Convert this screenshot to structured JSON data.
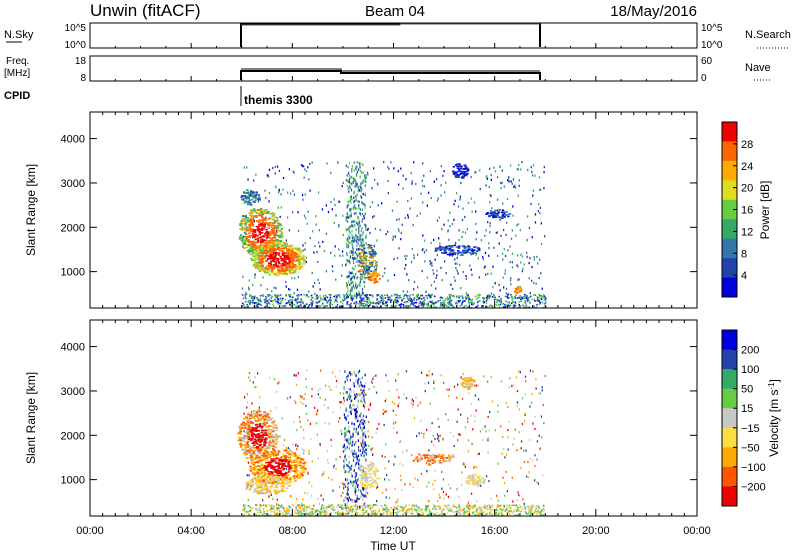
{
  "header": {
    "station": "Unwin (fitACF)",
    "beam": "Beam 04",
    "date": "18/May/2016"
  },
  "strips": {
    "nsky": {
      "label": "N.Sky",
      "ticks": [
        "10^5",
        "10^0"
      ],
      "right_ticks": [
        "10^5",
        "10^0"
      ],
      "right_label": "N.Search"
    },
    "freq": {
      "label_line1": "Freq.",
      "label_line2": "[MHz]",
      "ticks": [
        "18",
        "8"
      ],
      "right_ticks": [
        "60",
        "0"
      ],
      "right_label": "Nave"
    },
    "cpid": {
      "label": "CPID",
      "program": "themis 3300"
    }
  },
  "colors": {
    "power_scale": [
      "#0000dd",
      "#2244aa",
      "#3377aa",
      "#33aa66",
      "#66cc44",
      "#dddd22",
      "#ffaa00",
      "#ff6600",
      "#ee0000"
    ],
    "velocity_scale": [
      "#ee0000",
      "#ff5500",
      "#ffaa00",
      "#ffdd44",
      "#c8c8c8",
      "#66cc44",
      "#33aa66",
      "#2244aa",
      "#0000dd"
    ],
    "ground_scatter": "#909090"
  },
  "chart_data": [
    {
      "type": "heatmap",
      "name": "power",
      "xlabel": "",
      "ylabel": "Slant Range [km]",
      "x_range_hours": [
        0,
        24
      ],
      "ylim_km": [
        180,
        4600
      ],
      "yticks": [
        "4000",
        "3000",
        "2000",
        "1000"
      ],
      "ytick_values": [
        4000,
        3000,
        2000,
        1000
      ],
      "colorbar": {
        "label": "Power [dB]",
        "range": [
          0,
          32
        ],
        "ticks": [
          "28",
          "24",
          "20",
          "16",
          "12",
          "8",
          "4"
        ],
        "tick_values": [
          28,
          24,
          20,
          16,
          12,
          8,
          4
        ]
      },
      "observation_window_ut": [
        "06:00",
        "18:00"
      ]
    },
    {
      "type": "heatmap",
      "name": "velocity",
      "xlabel": "Time UT",
      "ylabel": "Slant Range [km]",
      "x_range_hours": [
        0,
        24
      ],
      "xticks": [
        "00:00",
        "04:00",
        "08:00",
        "12:00",
        "16:00",
        "20:00",
        "00:00"
      ],
      "xtick_values": [
        0,
        4,
        8,
        12,
        16,
        20,
        24
      ],
      "ylim_km": [
        180,
        4600
      ],
      "yticks": [
        "4000",
        "3000",
        "2000",
        "1000"
      ],
      "ytick_values": [
        4000,
        3000,
        2000,
        1000
      ],
      "colorbar": {
        "label": "Velocity [m s",
        "label_sup": "-1",
        "label_end": "]",
        "ticks": [
          "200",
          "100",
          "50",
          "15",
          "−15",
          "−50",
          "−100",
          "−200"
        ]
      },
      "observation_window_ut": [
        "06:00",
        "18:00"
      ]
    }
  ]
}
